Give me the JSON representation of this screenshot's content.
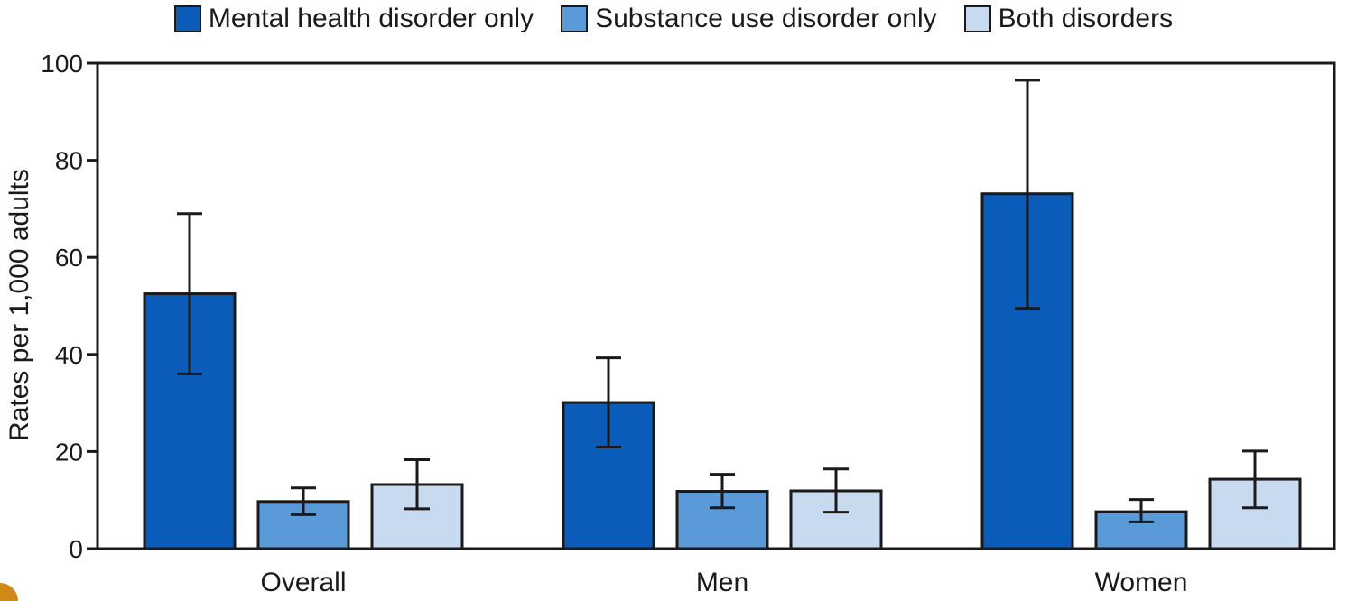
{
  "chart_data": {
    "type": "bar",
    "categories": [
      "Overall",
      "Men",
      "Women"
    ],
    "series": [
      {
        "name": "Mental health disorder only",
        "color": "#0a5cb8",
        "values": [
          52.5,
          30.1,
          73.1
        ],
        "error_low": [
          36.0,
          20.9,
          49.5
        ],
        "error_high": [
          69.0,
          39.3,
          96.5
        ]
      },
      {
        "name": "Substance use disorder only",
        "color": "#5b9ad8",
        "values": [
          9.7,
          11.8,
          7.6
        ],
        "error_low": [
          7.0,
          8.4,
          5.5
        ],
        "error_high": [
          12.5,
          15.3,
          10.1
        ]
      },
      {
        "name": "Both disorders",
        "color": "#c8daf0",
        "values": [
          13.2,
          11.9,
          14.3
        ],
        "error_low": [
          8.2,
          7.5,
          8.4
        ],
        "error_high": [
          18.3,
          16.4,
          20.1
        ]
      }
    ],
    "ylabel": "Rates per 1,000 adults",
    "xlabel": "",
    "ylim": [
      0,
      100
    ],
    "yticks": [
      0,
      20,
      40,
      60,
      80,
      100
    ],
    "legend_position": "top-center",
    "grid": false
  }
}
